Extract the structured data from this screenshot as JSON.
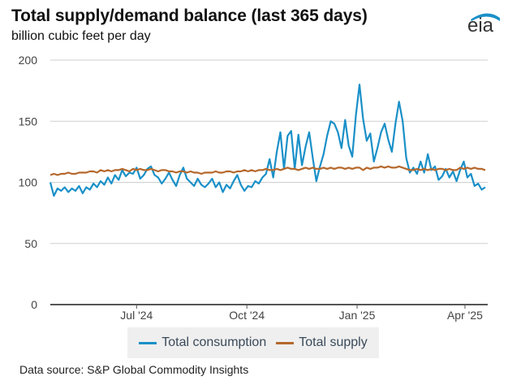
{
  "header": {
    "title": "Total supply/demand balance (last 365 days)",
    "subtitle": "billion cubic feet per day",
    "logo_text": "eia"
  },
  "footer": {
    "source": "Data source: S&P Global Commodity Insights"
  },
  "colors": {
    "consumption": "#1a90c8",
    "supply": "#b5682c",
    "grid": "#cfcfcf",
    "axis": "#555555",
    "logo_arc": "#1a90c8"
  },
  "chart_data": {
    "type": "line",
    "title": "Total supply/demand balance (last 365 days)",
    "ylabel": "billion cubic feet per day",
    "xlabel": "",
    "ylim": [
      0,
      200
    ],
    "yticks": [
      0,
      50,
      100,
      150,
      200
    ],
    "ytick_labels": [
      "0",
      "50",
      "100",
      "150",
      "200"
    ],
    "xlim": [
      "2024-04-20",
      "2025-04-20"
    ],
    "xticks": [
      "2024-07-01",
      "2024-10-01",
      "2025-01-01",
      "2025-04-01"
    ],
    "xtick_labels": [
      "Jul '24",
      "Oct '24",
      "Jan '25",
      "Apr '25"
    ],
    "grid": true,
    "legend": "bottom-center",
    "x_day_offsets": [
      0,
      3,
      6,
      9,
      12,
      15,
      18,
      21,
      24,
      27,
      30,
      33,
      36,
      39,
      42,
      45,
      48,
      51,
      54,
      57,
      60,
      63,
      66,
      69,
      72,
      75,
      78,
      81,
      84,
      87,
      90,
      93,
      96,
      99,
      102,
      105,
      108,
      111,
      114,
      117,
      120,
      123,
      126,
      129,
      132,
      135,
      138,
      141,
      144,
      147,
      150,
      153,
      156,
      159,
      162,
      165,
      168,
      171,
      174,
      177,
      180,
      183,
      186,
      189,
      192,
      195,
      198,
      201,
      204,
      207,
      210,
      213,
      216,
      219,
      222,
      225,
      228,
      231,
      234,
      237,
      240,
      243,
      246,
      249,
      252,
      255,
      258,
      261,
      264,
      267,
      270,
      273,
      276,
      279,
      282,
      285,
      288,
      291,
      294,
      297,
      300,
      303,
      306,
      309,
      312,
      315,
      318,
      321,
      324,
      327,
      330,
      333,
      336,
      339,
      342,
      345,
      348,
      351,
      354,
      357,
      360,
      363
    ],
    "series": [
      {
        "name": "Total consumption",
        "values": [
          100,
          89,
          95,
          93,
          96,
          92,
          95,
          93,
          97,
          91,
          96,
          94,
          99,
          96,
          101,
          98,
          104,
          99,
          106,
          102,
          110,
          105,
          108,
          107,
          112,
          103,
          106,
          111,
          113,
          106,
          104,
          99,
          103,
          108,
          102,
          97,
          106,
          112,
          103,
          100,
          97,
          103,
          98,
          96,
          99,
          103,
          96,
          100,
          92,
          98,
          95,
          101,
          106,
          98,
          93,
          97,
          96,
          101,
          99,
          104,
          107,
          119,
          104,
          125,
          141,
          111,
          138,
          142,
          111,
          139,
          114,
          129,
          141,
          120,
          101,
          113,
          123,
          138,
          150,
          148,
          141,
          128,
          151,
          130,
          121,
          155,
          180,
          152,
          134,
          140,
          117,
          128,
          141,
          148,
          135,
          125,
          148,
          166,
          150,
          120,
          108,
          112,
          107,
          117,
          108,
          123,
          110,
          113,
          102,
          105,
          111,
          104,
          109,
          101,
          110,
          117,
          104,
          107,
          97,
          99,
          94,
          96,
          93
        ],
        "color": "#1a90c8"
      },
      {
        "name": "Total supply",
        "values": [
          106,
          107,
          106,
          107,
          107,
          108,
          107,
          107,
          108,
          108,
          108,
          109,
          109,
          108,
          110,
          109,
          110,
          109,
          110,
          110,
          111,
          110,
          109,
          111,
          110,
          111,
          110,
          110,
          111,
          110,
          109,
          110,
          110,
          109,
          109,
          108,
          109,
          109,
          108,
          109,
          108,
          108,
          107,
          108,
          108,
          108,
          109,
          108,
          108,
          109,
          109,
          108,
          109,
          109,
          110,
          109,
          110,
          109,
          110,
          110,
          111,
          110,
          110,
          111,
          110,
          111,
          112,
          111,
          111,
          110,
          111,
          112,
          111,
          112,
          111,
          111,
          112,
          111,
          112,
          111,
          112,
          112,
          111,
          112,
          111,
          112,
          112,
          110,
          112,
          111,
          112,
          112,
          113,
          112,
          113,
          112,
          112,
          113,
          112,
          111,
          110,
          110,
          111,
          110,
          111,
          110,
          111,
          110,
          111,
          111,
          110,
          111,
          110,
          110,
          112,
          111,
          112,
          111,
          112,
          111,
          111,
          110,
          110
        ],
        "color": "#b5682c"
      }
    ]
  }
}
